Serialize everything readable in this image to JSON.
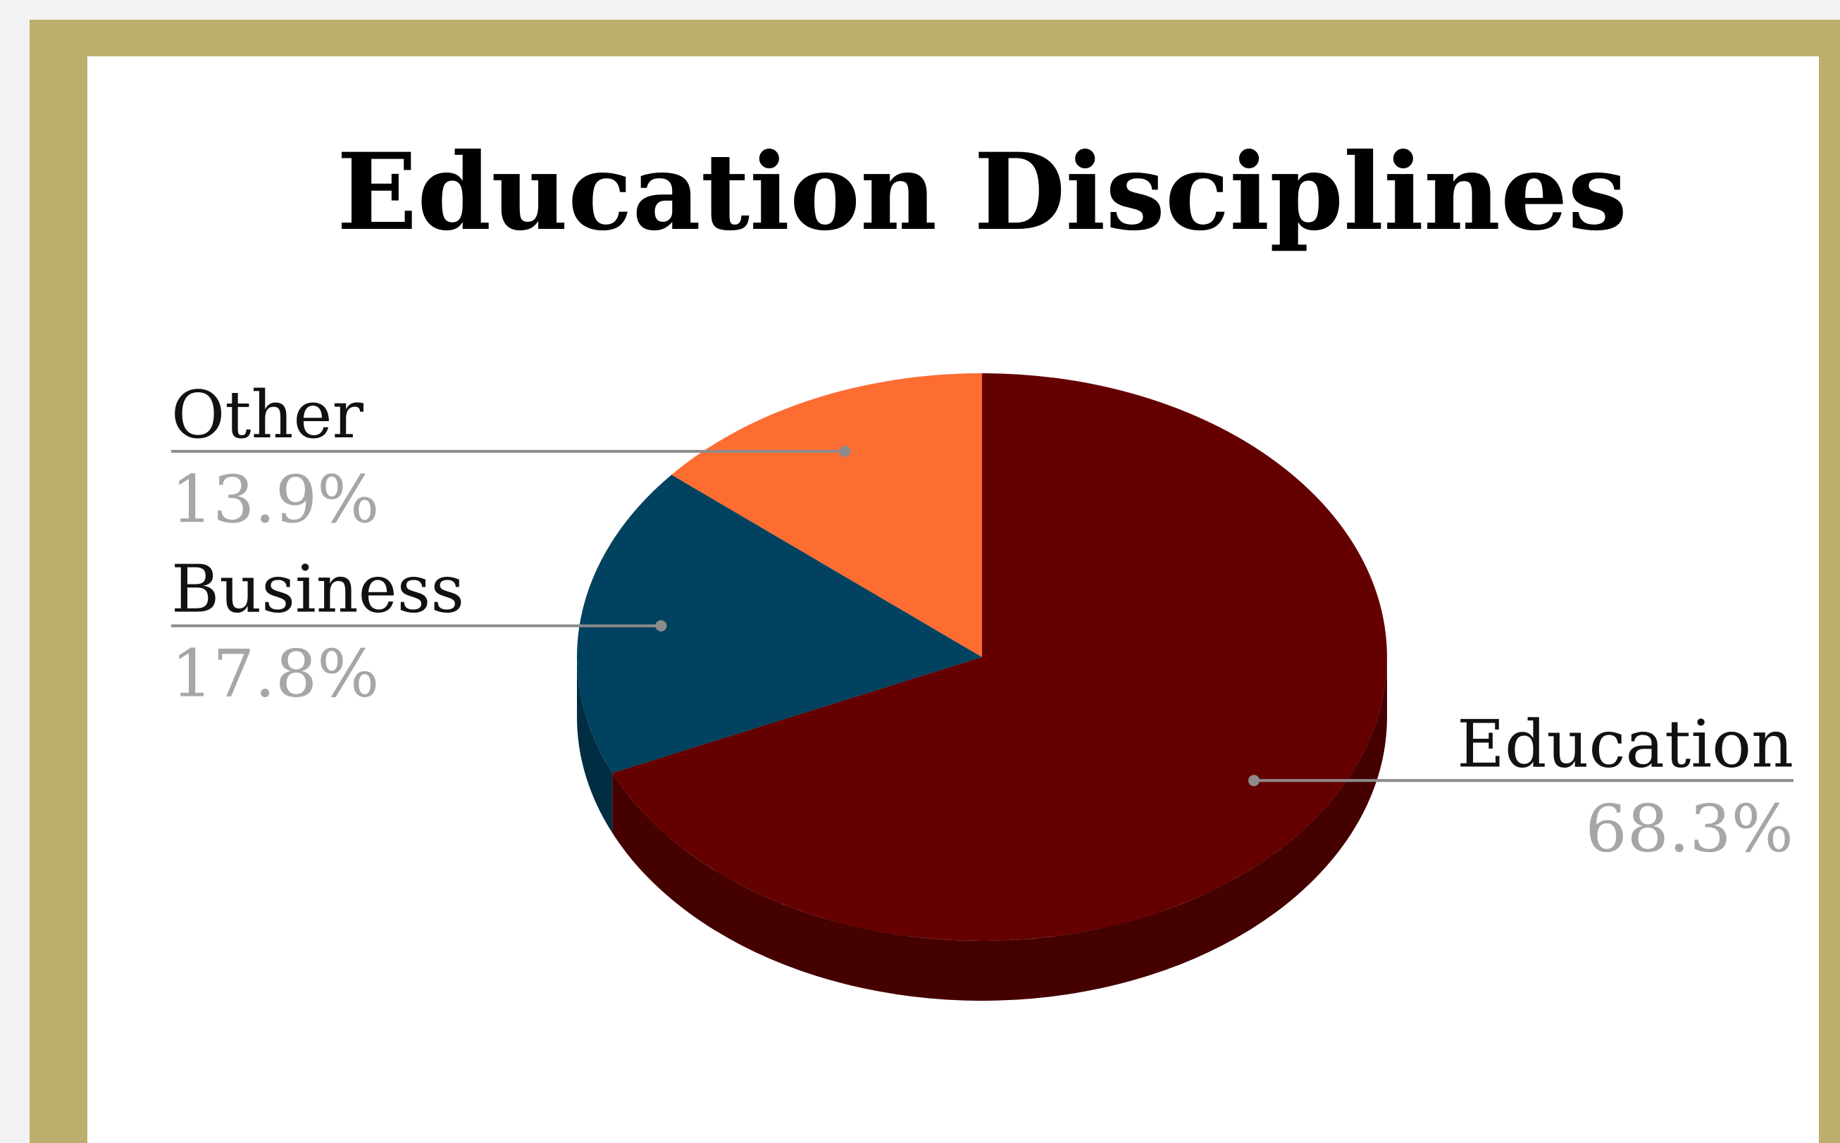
{
  "chart_data": {
    "type": "pie",
    "title": "Education Disciplines",
    "categories": [
      "Education",
      "Business",
      "Other"
    ],
    "values": [
      68.3,
      17.8,
      13.9
    ],
    "value_labels": [
      "68.3%",
      "17.8%",
      "13.9%"
    ],
    "legend": "none",
    "style": "3d",
    "colors": [
      "#650000",
      "#00425f",
      "#fd6d32"
    ]
  },
  "theme": {
    "frame": "#bcae6d",
    "panel": "#ffffff",
    "leader": "#8c8c8c",
    "value_text": "#a6a6a6",
    "label_text": "#111111"
  }
}
